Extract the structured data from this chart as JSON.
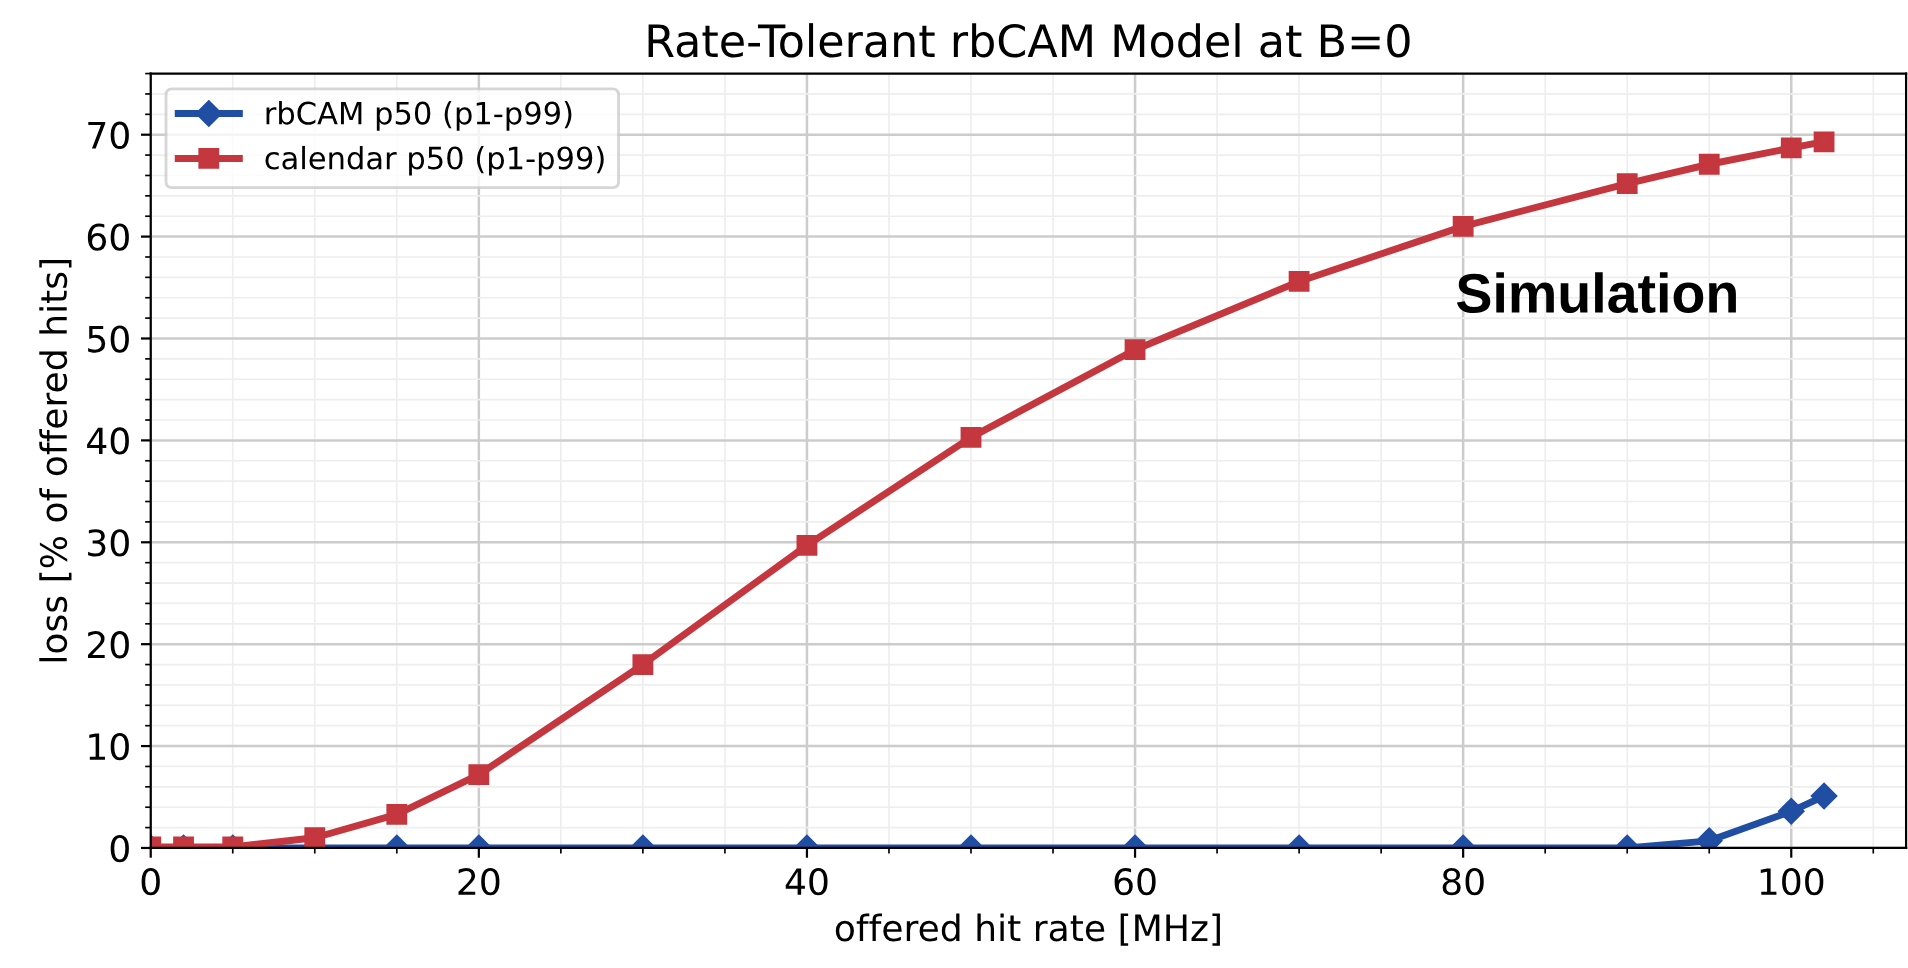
{
  "chart_data": {
    "type": "line",
    "title": "Rate-Tolerant rbCAM Model at B=0",
    "xlabel": "offered hit rate [MHz]",
    "ylabel": "loss [% of offered hits]",
    "xlim": [
      0,
      107
    ],
    "ylim": [
      0,
      76
    ],
    "xticks": [
      0,
      20,
      40,
      60,
      80,
      100
    ],
    "yticks": [
      0,
      10,
      20,
      30,
      40,
      50,
      60,
      70
    ],
    "grid": true,
    "legend": "top left",
    "annotations": [
      {
        "text": "Simulation"
      }
    ],
    "series": [
      {
        "name": "rbCAM p50 (p1-p99)",
        "color": "#1f4ea3",
        "marker": "diamond",
        "x": [
          0,
          2,
          5,
          10,
          15,
          20,
          30,
          40,
          50,
          60,
          70,
          80,
          90,
          95,
          100,
          102
        ],
        "values": [
          0,
          0,
          0,
          0,
          0,
          0,
          0,
          0,
          0,
          0,
          0,
          0,
          0,
          0.7,
          3.6,
          5.1
        ]
      },
      {
        "name": "calendar p50 (p1-p99)",
        "color": "#c4373f",
        "marker": "square",
        "x": [
          0,
          2,
          5,
          10,
          15,
          20,
          30,
          40,
          50,
          60,
          70,
          80,
          90,
          95,
          100,
          102
        ],
        "values": [
          0.1,
          0.1,
          0.1,
          1.0,
          3.3,
          7.2,
          18.0,
          29.7,
          40.3,
          48.9,
          55.6,
          61.0,
          65.2,
          67.1,
          68.7,
          69.3
        ]
      }
    ]
  }
}
